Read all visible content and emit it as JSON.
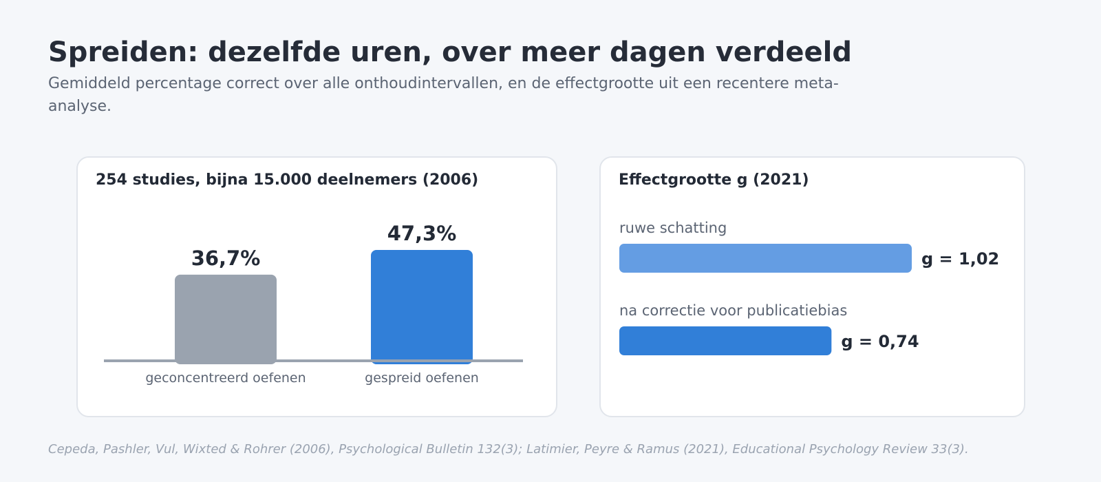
{
  "header": {
    "title": "Spreiden: dezelfde uren, over meer dagen verdeeld",
    "subtitle": "Gemiddeld percentage correct over alle onthoudintervallen, en de effectgrootte uit een recentere meta-analyse."
  },
  "footer": {
    "source": "Cepeda, Pashler, Vul, Wixted & Rohrer (2006), Psychological Bulletin 132(3); Latimier, Peyre & Ramus (2021), Educational Psychology Review 33(3)."
  },
  "chart_data": [
    {
      "type": "bar",
      "title": "254 studies, bijna 15.000 deelnemers (2006)",
      "categories": [
        "geconcentreerd oefenen",
        "gespreid oefenen"
      ],
      "values": [
        36.7,
        47.3
      ],
      "value_labels": [
        "36,7%",
        "47,3%"
      ],
      "colors": [
        "#9aa3af",
        "#317fd8"
      ],
      "ylim": [
        0,
        60
      ],
      "xlabel": "",
      "ylabel": "",
      "grid": false
    },
    {
      "type": "bar",
      "orientation": "horizontal",
      "title": "Effectgrootte g (2021)",
      "categories": [
        "ruwe schatting",
        "na correctie voor publicatiebias"
      ],
      "values": [
        1.02,
        0.74
      ],
      "value_labels": [
        "g = 1,02",
        "g = 0,74"
      ],
      "colors": [
        "#649de3",
        "#317fd8"
      ],
      "xlim": [
        0,
        1.02
      ],
      "grid": false
    }
  ]
}
